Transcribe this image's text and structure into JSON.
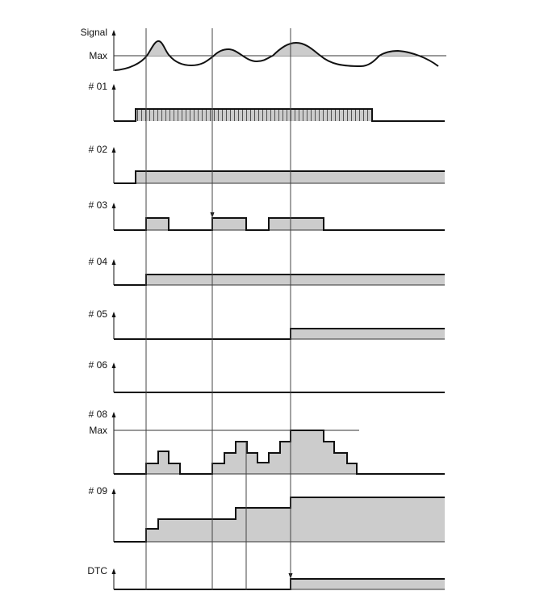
{
  "rows": [
    {
      "label": "Signal",
      "max_label": "Max"
    },
    {
      "label": "# 01"
    },
    {
      "label": "# 02"
    },
    {
      "label": "# 03"
    },
    {
      "label": "# 04"
    },
    {
      "label": "# 05"
    },
    {
      "label": "# 06"
    },
    {
      "label": "# 08",
      "max_label": "Max"
    },
    {
      "label": "# 09"
    },
    {
      "label": "DTC"
    }
  ],
  "colors": {
    "fill": "#cccccc",
    "line": "#111111"
  }
}
